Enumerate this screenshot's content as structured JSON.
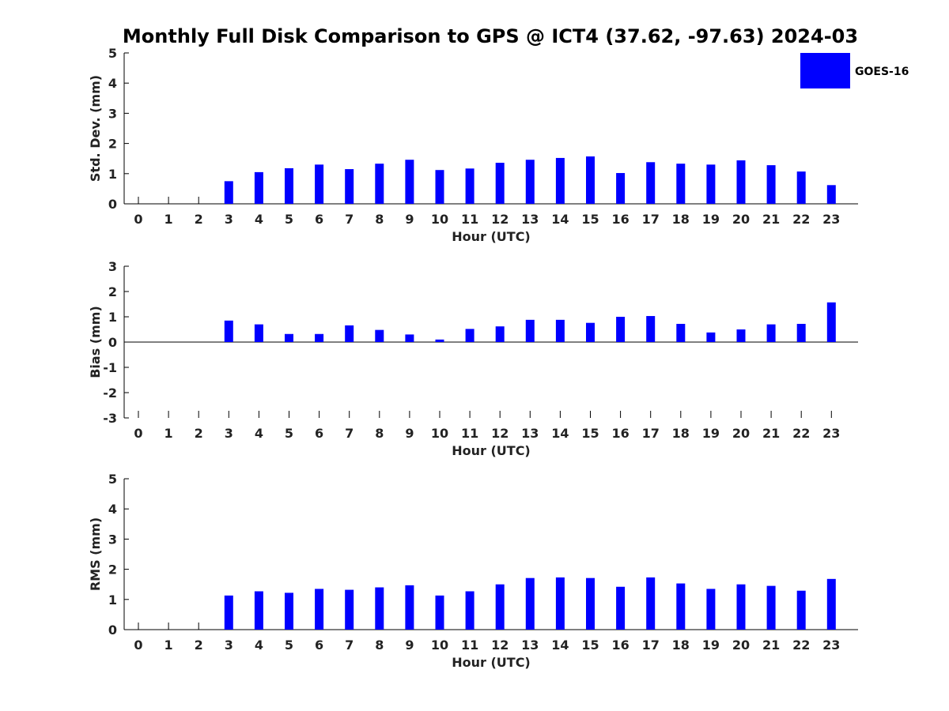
{
  "chart_data": {
    "title": "Monthly Full Disk Comparison to GPS @ ICT4 (37.62, -97.63) 2024-03",
    "bar_color": "#0000ff",
    "legend": {
      "label": "GOES-16",
      "placement": "top-right"
    },
    "categories": [
      "0",
      "1",
      "2",
      "3",
      "4",
      "5",
      "6",
      "7",
      "8",
      "9",
      "10",
      "11",
      "12",
      "13",
      "14",
      "15",
      "16",
      "17",
      "18",
      "19",
      "20",
      "21",
      "22",
      "23"
    ],
    "panels": [
      {
        "type": "bar",
        "ylabel": "Std. Dev. (mm)",
        "xlabel": "Hour (UTC)",
        "ylim": [
          0,
          5
        ],
        "yticks": [
          "0",
          "1",
          "2",
          "3",
          "4",
          "5"
        ],
        "series": [
          {
            "name": "GOES-16",
            "values": [
              null,
              null,
              null,
              0.75,
              1.05,
              1.18,
              1.3,
              1.15,
              1.33,
              1.46,
              1.12,
              1.17,
              1.36,
              1.46,
              1.52,
              1.57,
              1.02,
              1.38,
              1.33,
              1.3,
              1.44,
              1.28,
              1.07,
              0.62
            ]
          }
        ]
      },
      {
        "type": "bar",
        "ylabel": "Bias (mm)",
        "xlabel": "Hour (UTC)",
        "ylim": [
          -3,
          3
        ],
        "yticks": [
          "-3",
          "-2",
          "-1",
          "0",
          "1",
          "2",
          "3"
        ],
        "series": [
          {
            "name": "GOES-16",
            "values": [
              null,
              null,
              null,
              0.85,
              0.7,
              0.32,
              0.32,
              0.66,
              0.48,
              0.3,
              0.1,
              0.52,
              0.62,
              0.88,
              0.88,
              0.76,
              1.0,
              1.03,
              0.72,
              0.38,
              0.5,
              0.7,
              0.72,
              1.57
            ]
          }
        ]
      },
      {
        "type": "bar",
        "ylabel": "RMS (mm)",
        "xlabel": "Hour (UTC)",
        "ylim": [
          0,
          5
        ],
        "yticks": [
          "0",
          "1",
          "2",
          "3",
          "4",
          "5"
        ],
        "series": [
          {
            "name": "GOES-16",
            "values": [
              null,
              null,
              null,
              1.13,
              1.27,
              1.22,
              1.35,
              1.32,
              1.4,
              1.47,
              1.13,
              1.27,
              1.5,
              1.71,
              1.73,
              1.71,
              1.42,
              1.73,
              1.53,
              1.35,
              1.5,
              1.45,
              1.29,
              1.68
            ]
          }
        ]
      }
    ]
  }
}
